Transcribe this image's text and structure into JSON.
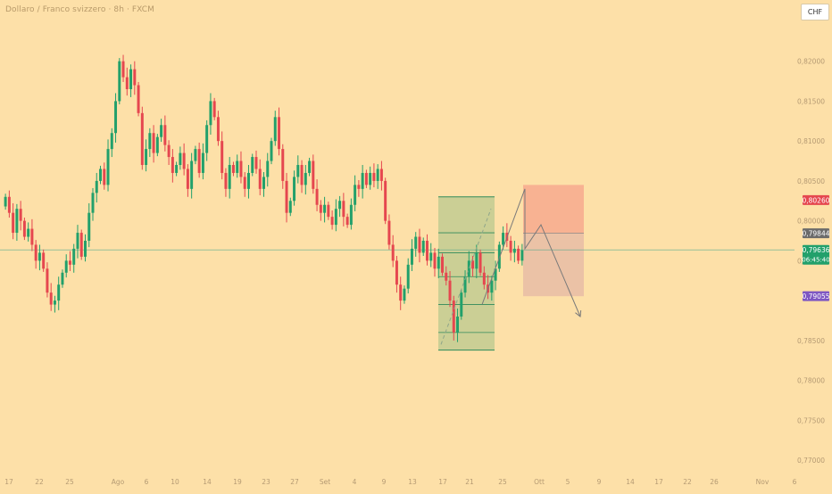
{
  "header": {
    "title": "Dollaro / Franco svizzero · 8h · FXCM",
    "currency": "CHF"
  },
  "colors": {
    "background": "#fde0a8",
    "up": "#22a06b",
    "down": "#e5474f",
    "target_zone": "#b9c98f",
    "stop_zone": "#f7a98e",
    "profit_zone": "#e7bca6",
    "current_line": "#5cab8f"
  },
  "chart_data": {
    "type": "candlestick",
    "ylim": [
      0.769,
      0.826
    ],
    "x_range": [
      0,
      890
    ],
    "y_ticks": [
      {
        "value": 0.82,
        "label": "0,82000"
      },
      {
        "value": 0.815,
        "label": "0,81500"
      },
      {
        "value": 0.81,
        "label": "0,81000"
      },
      {
        "value": 0.805,
        "label": "0,80500"
      },
      {
        "value": 0.8,
        "label": "0,80000"
      },
      {
        "value": 0.795,
        "label": "0,79500"
      },
      {
        "value": 0.785,
        "label": "0,78500"
      },
      {
        "value": 0.78,
        "label": "0,78000"
      },
      {
        "value": 0.775,
        "label": "0,77500"
      },
      {
        "value": 0.77,
        "label": "0,77000"
      }
    ],
    "price_tags": [
      {
        "value": 0.8026,
        "label": "0,80260",
        "color": "#e5474f"
      },
      {
        "value": 0.79844,
        "label": "0,79844",
        "color": "#6b6b6b"
      },
      {
        "value": 0.79636,
        "label": "0,79636",
        "sub": "06:45:40",
        "color": "#22a06b"
      },
      {
        "value": 0.79055,
        "label": "0,79055",
        "color": "#7e57c2"
      }
    ],
    "x_ticks": [
      {
        "x": 10,
        "label": "17"
      },
      {
        "x": 44,
        "label": "22"
      },
      {
        "x": 78,
        "label": "25"
      },
      {
        "x": 132,
        "label": "Ago"
      },
      {
        "x": 164,
        "label": "6"
      },
      {
        "x": 196,
        "label": "10"
      },
      {
        "x": 232,
        "label": "14"
      },
      {
        "x": 266,
        "label": "19"
      },
      {
        "x": 298,
        "label": "23"
      },
      {
        "x": 330,
        "label": "27"
      },
      {
        "x": 364,
        "label": "Set"
      },
      {
        "x": 397,
        "label": "4"
      },
      {
        "x": 430,
        "label": "9"
      },
      {
        "x": 462,
        "label": "13"
      },
      {
        "x": 496,
        "label": "17"
      },
      {
        "x": 526,
        "label": "21"
      },
      {
        "x": 563,
        "label": "25"
      },
      {
        "x": 604,
        "label": "Ott"
      },
      {
        "x": 636,
        "label": "5"
      },
      {
        "x": 671,
        "label": "9"
      },
      {
        "x": 706,
        "label": "14"
      },
      {
        "x": 738,
        "label": "17"
      },
      {
        "x": 770,
        "label": "22"
      },
      {
        "x": 800,
        "label": "26"
      },
      {
        "x": 854,
        "label": "Nov"
      },
      {
        "x": 890,
        "label": "6"
      }
    ],
    "current_price": 0.79636,
    "closes": [
      0.803,
      0.801,
      0.7985,
      0.8015,
      0.8,
      0.798,
      0.799,
      0.797,
      0.795,
      0.796,
      0.794,
      0.791,
      0.7895,
      0.79,
      0.792,
      0.7935,
      0.795,
      0.7945,
      0.7965,
      0.7985,
      0.7955,
      0.7975,
      0.801,
      0.8035,
      0.805,
      0.8065,
      0.8045,
      0.809,
      0.811,
      0.815,
      0.82,
      0.818,
      0.8165,
      0.819,
      0.817,
      0.8135,
      0.807,
      0.809,
      0.811,
      0.8085,
      0.8105,
      0.812,
      0.8095,
      0.808,
      0.806,
      0.807,
      0.8085,
      0.8065,
      0.804,
      0.8075,
      0.809,
      0.806,
      0.8085,
      0.812,
      0.815,
      0.813,
      0.81,
      0.806,
      0.804,
      0.807,
      0.806,
      0.8075,
      0.8055,
      0.804,
      0.806,
      0.808,
      0.8065,
      0.804,
      0.8055,
      0.8075,
      0.81,
      0.813,
      0.809,
      0.805,
      0.801,
      0.8025,
      0.8055,
      0.807,
      0.8045,
      0.806,
      0.8075,
      0.804,
      0.802,
      0.801,
      0.802,
      0.8005,
      0.7995,
      0.8015,
      0.8025,
      0.8005,
      0.7995,
      0.802,
      0.8045,
      0.804,
      0.806,
      0.8045,
      0.806,
      0.805,
      0.8065,
      0.805,
      0.8,
      0.797,
      0.795,
      0.792,
      0.79,
      0.7915,
      0.7945,
      0.7965,
      0.798,
      0.796,
      0.7975,
      0.795,
      0.796,
      0.794,
      0.7955,
      0.7935,
      0.7925,
      0.79,
      0.786,
      0.788,
      0.791,
      0.793,
      0.795,
      0.794,
      0.796,
      0.7935,
      0.792,
      0.791,
      0.7925,
      0.794,
      0.797,
      0.7985,
      0.7975,
      0.796,
      0.7965,
      0.795,
      0.7963
    ],
    "annotations": {
      "fib_box": {
        "x0": 491,
        "x1": 554,
        "y_top": 0.803,
        "y_bottom": 0.7838,
        "levels": [
          0.7985,
          0.796,
          0.793,
          0.7895,
          0.786
        ]
      },
      "stop_zone": {
        "x0": 586,
        "x1": 654,
        "y_top": 0.8045,
        "y_bottom": 0.79844
      },
      "profit_zone": {
        "x0": 586,
        "x1": 654,
        "y_top": 0.79844,
        "y_bottom": 0.79055
      },
      "projection": [
        {
          "x": 540,
          "y": 0.7895
        },
        {
          "x": 588,
          "y": 0.804
        },
        {
          "x": 588,
          "y": 0.7965
        },
        {
          "x": 606,
          "y": 0.7995
        },
        {
          "x": 650,
          "y": 0.788
        }
      ],
      "dashed_trend": [
        {
          "x": 494,
          "y": 0.7845
        },
        {
          "x": 550,
          "y": 0.8015
        }
      ]
    }
  }
}
